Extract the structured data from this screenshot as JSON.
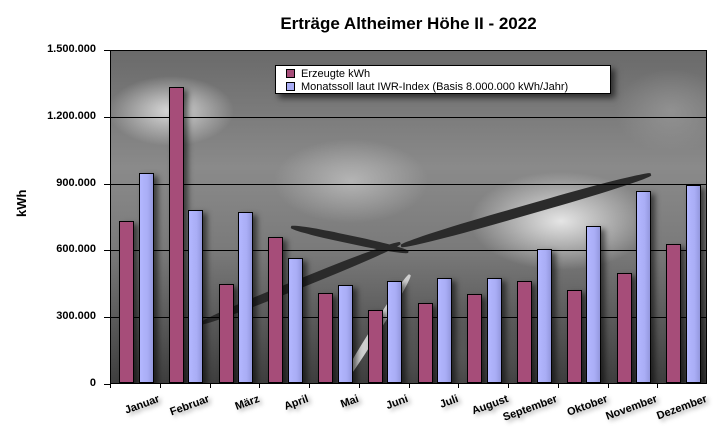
{
  "chart_data": {
    "type": "bar",
    "title": "Erträge Altheimer Höhe II - 2022",
    "xlabel": "",
    "ylabel": "kWh",
    "ylim": [
      0,
      1500000
    ],
    "yticks": [
      "0",
      "300.000",
      "600.000",
      "900.000",
      "1.200.000",
      "1.500.000"
    ],
    "ytick_values": [
      0,
      300000,
      600000,
      900000,
      1200000,
      1500000
    ],
    "grid": true,
    "legend_position": "top-center inside plot",
    "categories": [
      "Januar",
      "Februar",
      "März",
      "April",
      "Mai",
      "Juni",
      "Juli",
      "August",
      "September",
      "Oktober",
      "November",
      "Dezember"
    ],
    "series": [
      {
        "name": "Erzeugte kWh",
        "color": "#a64d79",
        "values": [
          727000,
          1329000,
          446000,
          657000,
          406000,
          326000,
          361000,
          402000,
          460000,
          419000,
          494000,
          624000
        ]
      },
      {
        "name": "Monatssoll laut IWR-Index (Basis 8.000.000 kWh/Jahr)",
        "color": "#a9adf5",
        "values": [
          942000,
          776000,
          767000,
          561000,
          442000,
          460000,
          472000,
          472000,
          602000,
          705000,
          861000,
          890000
        ]
      }
    ]
  }
}
